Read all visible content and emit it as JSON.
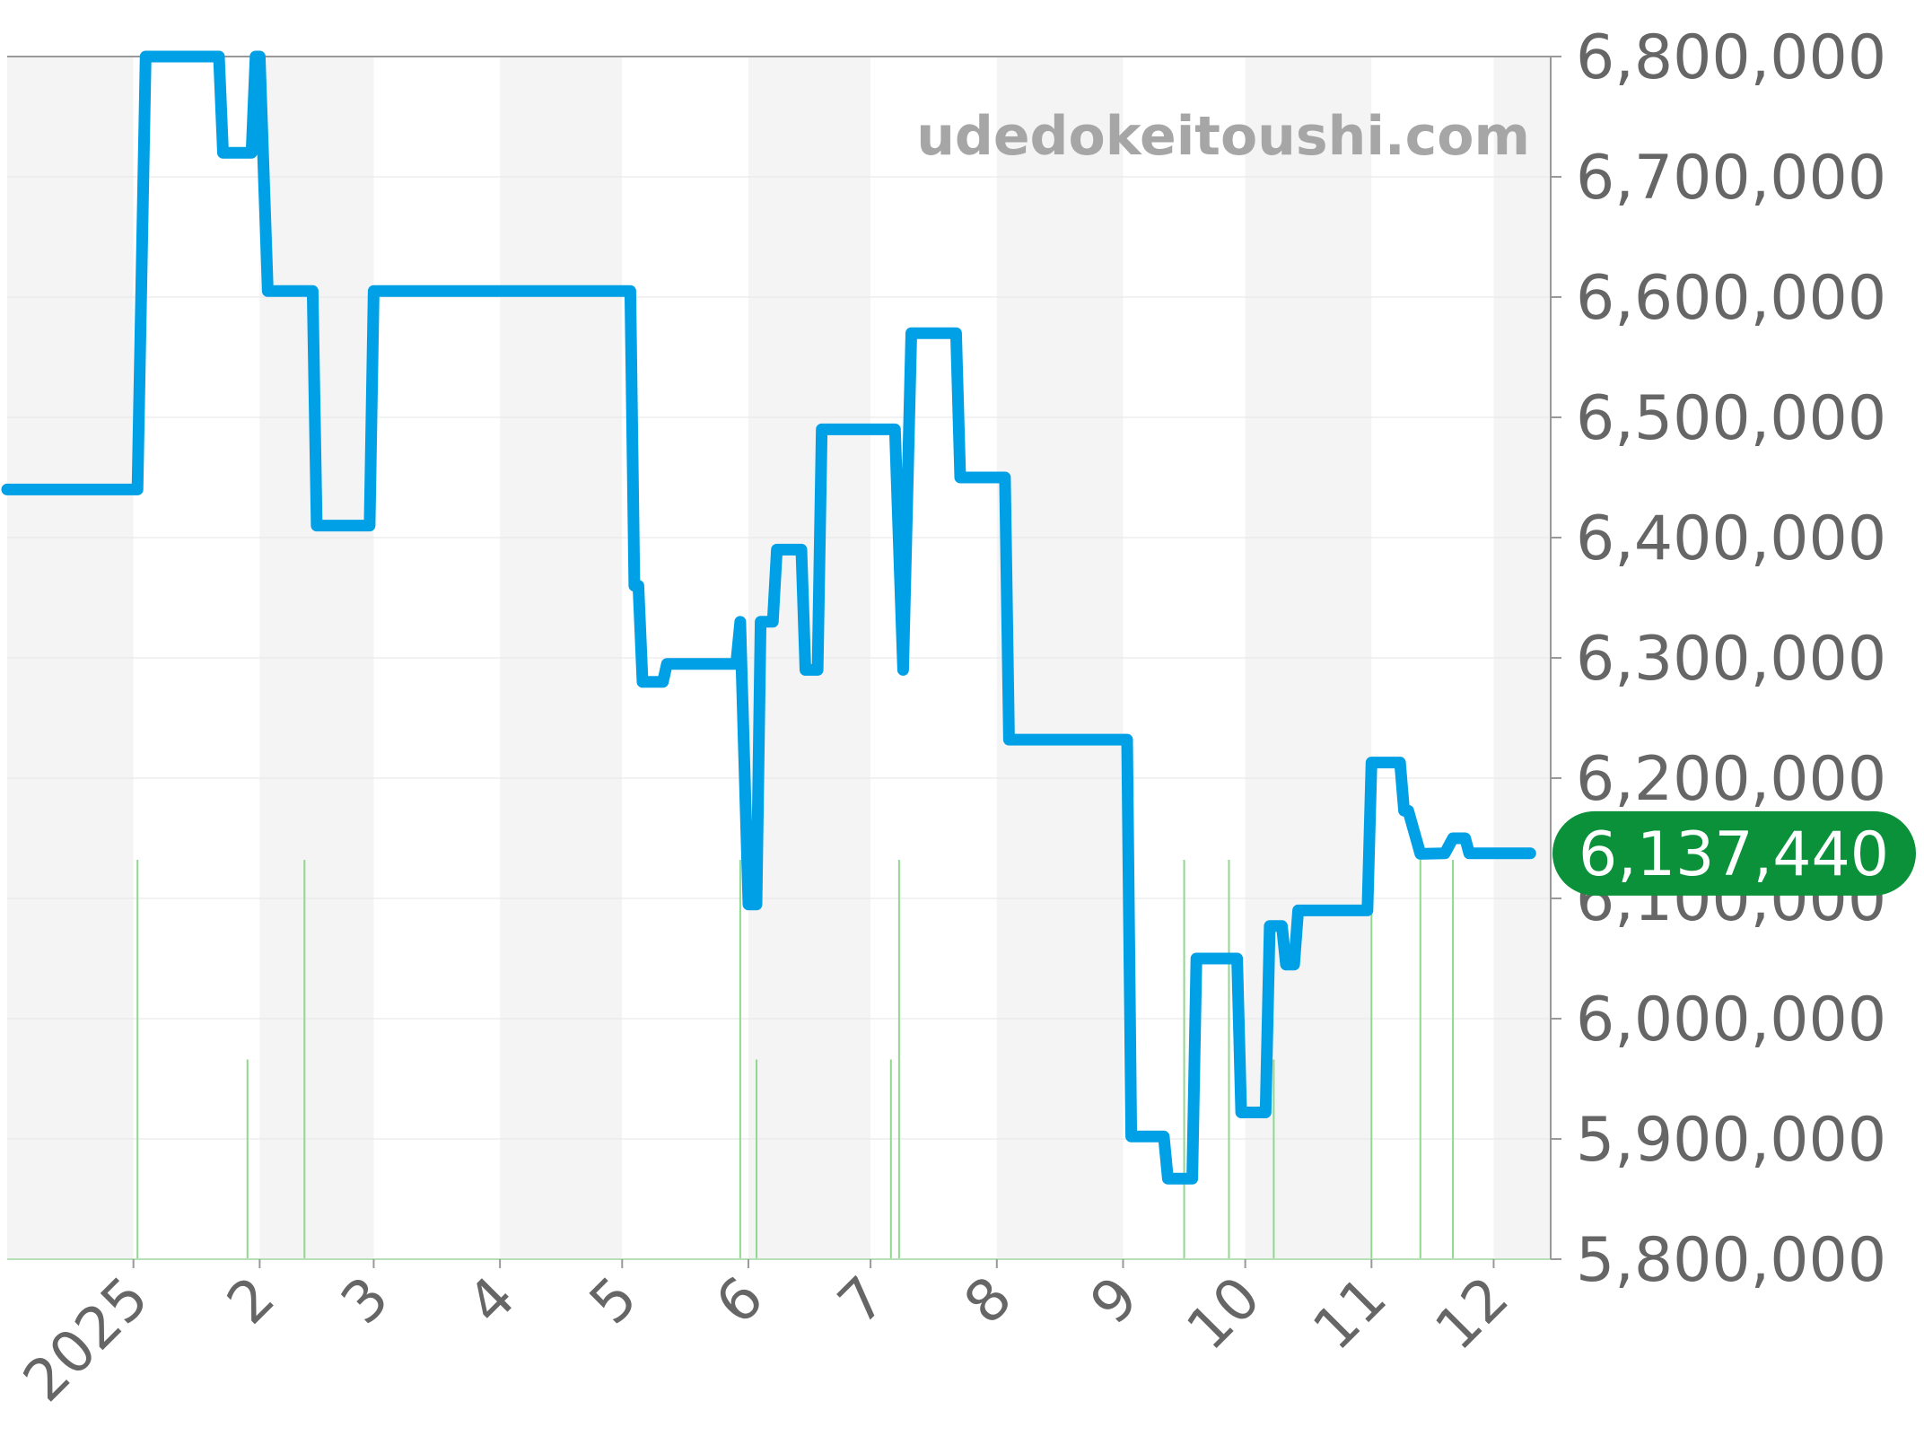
{
  "chart_data": {
    "type": "line",
    "watermark": "udedokeitoushi.com",
    "ylim": [
      5800000,
      6800000
    ],
    "yticks": [
      {
        "value": 6800000,
        "label": "6,800,000"
      },
      {
        "value": 6700000,
        "label": "6,700,000"
      },
      {
        "value": 6600000,
        "label": "6,600,000"
      },
      {
        "value": 6500000,
        "label": "6,500,000"
      },
      {
        "value": 6400000,
        "label": "6,400,000"
      },
      {
        "value": 6300000,
        "label": "6,300,000"
      },
      {
        "value": 6200000,
        "label": "6,200,000"
      },
      {
        "value": 6100000,
        "label": "6,100,000"
      },
      {
        "value": 6000000,
        "label": "6,000,000"
      },
      {
        "value": 5900000,
        "label": "5,900,000"
      },
      {
        "value": 5800000,
        "label": "5,800,000"
      }
    ],
    "xlim": [
      "2024-12-01",
      "2025-12-15"
    ],
    "xticks": [
      {
        "date": "2025-01-01",
        "label": "2025"
      },
      {
        "date": "2025-02-01",
        "label": "2"
      },
      {
        "date": "2025-03-01",
        "label": "3"
      },
      {
        "date": "2025-04-01",
        "label": "4"
      },
      {
        "date": "2025-05-01",
        "label": "5"
      },
      {
        "date": "2025-06-01",
        "label": "6"
      },
      {
        "date": "2025-07-01",
        "label": "7"
      },
      {
        "date": "2025-08-01",
        "label": "8"
      },
      {
        "date": "2025-09-01",
        "label": "9"
      },
      {
        "date": "2025-10-01",
        "label": "10"
      },
      {
        "date": "2025-11-01",
        "label": "11"
      },
      {
        "date": "2025-12-01",
        "label": "12"
      }
    ],
    "month_band_colors": [
      "#f4f4f4",
      "#ffffff"
    ],
    "grid": true,
    "series": [
      {
        "color": "#00a0e6",
        "points": [
          [
            "2024-12-01",
            6440000
          ],
          [
            "2025-01-02",
            6440000
          ],
          [
            "2025-01-04",
            6800000
          ],
          [
            "2025-01-22",
            6800000
          ],
          [
            "2025-01-23",
            6720000
          ],
          [
            "2025-01-30",
            6720000
          ],
          [
            "2025-01-31",
            6800000
          ],
          [
            "2025-02-01",
            6800000
          ],
          [
            "2025-02-03",
            6605000
          ],
          [
            "2025-02-14",
            6605000
          ],
          [
            "2025-02-15",
            6410000
          ],
          [
            "2025-02-28",
            6410000
          ],
          [
            "2025-03-01",
            6605000
          ],
          [
            "2025-05-03",
            6605000
          ],
          [
            "2025-05-04",
            6360000
          ],
          [
            "2025-05-05",
            6360000
          ],
          [
            "2025-05-06",
            6280000
          ],
          [
            "2025-05-11",
            6280000
          ],
          [
            "2025-05-12",
            6295000
          ],
          [
            "2025-05-29",
            6295000
          ],
          [
            "2025-05-30",
            6330000
          ],
          [
            "2025-06-01",
            6095000
          ],
          [
            "2025-06-03",
            6095000
          ],
          [
            "2025-06-04",
            6330000
          ],
          [
            "2025-06-07",
            6330000
          ],
          [
            "2025-06-08",
            6390000
          ],
          [
            "2025-06-14",
            6390000
          ],
          [
            "2025-06-15",
            6290000
          ],
          [
            "2025-06-18",
            6290000
          ],
          [
            "2025-06-19",
            6490000
          ],
          [
            "2025-07-07",
            6490000
          ],
          [
            "2025-07-09",
            6290000
          ],
          [
            "2025-07-11",
            6570000
          ],
          [
            "2025-07-22",
            6570000
          ],
          [
            "2025-07-23",
            6450000
          ],
          [
            "2025-08-03",
            6450000
          ],
          [
            "2025-08-04",
            6232000
          ],
          [
            "2025-09-02",
            6232000
          ],
          [
            "2025-09-03",
            5902000
          ],
          [
            "2025-09-11",
            5902000
          ],
          [
            "2025-09-12",
            5867000
          ],
          [
            "2025-09-18",
            5867000
          ],
          [
            "2025-09-19",
            6050000
          ],
          [
            "2025-09-29",
            6050000
          ],
          [
            "2025-09-30",
            5922000
          ],
          [
            "2025-10-06",
            5922000
          ],
          [
            "2025-10-07",
            6077000
          ],
          [
            "2025-10-10",
            6077000
          ],
          [
            "2025-10-11",
            6045000
          ],
          [
            "2025-10-13",
            6045000
          ],
          [
            "2025-10-14",
            6090000
          ],
          [
            "2025-10-31",
            6090000
          ],
          [
            "2025-11-01",
            6213000
          ],
          [
            "2025-11-08",
            6213000
          ],
          [
            "2025-11-09",
            6173000
          ],
          [
            "2025-11-10",
            6173000
          ],
          [
            "2025-11-13",
            6137000
          ],
          [
            "2025-11-19",
            6137440
          ],
          [
            "2025-11-21",
            6150000
          ],
          [
            "2025-11-24",
            6150000
          ],
          [
            "2025-11-25",
            6137440
          ],
          [
            "2025-12-10",
            6137440
          ]
        ]
      }
    ],
    "volume_bars": {
      "color": "#90d890",
      "max": 4,
      "bars": [
        {
          "date": "2025-01-02",
          "value": 4
        },
        {
          "date": "2025-01-29",
          "value": 2
        },
        {
          "date": "2025-02-12",
          "value": 4
        },
        {
          "date": "2025-05-30",
          "value": 4
        },
        {
          "date": "2025-06-03",
          "value": 2
        },
        {
          "date": "2025-07-06",
          "value": 2
        },
        {
          "date": "2025-07-08",
          "value": 4
        },
        {
          "date": "2025-09-16",
          "value": 4
        },
        {
          "date": "2025-09-27",
          "value": 4
        },
        {
          "date": "2025-10-08",
          "value": 2
        },
        {
          "date": "2025-11-01",
          "value": 4
        },
        {
          "date": "2025-11-13",
          "value": 4
        },
        {
          "date": "2025-11-21",
          "value": 4
        }
      ]
    },
    "current_value": {
      "value": 6137440,
      "label": "6,137,440",
      "color": "#0a913a"
    }
  }
}
